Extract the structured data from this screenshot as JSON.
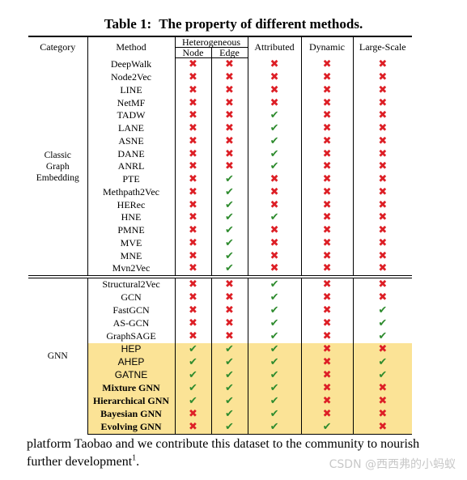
{
  "caption": {
    "label": "Table 1:",
    "text": "The property of different methods."
  },
  "header": {
    "category": "Category",
    "method": "Method",
    "heterogeneous": "Heterogeneous",
    "node": "Node",
    "edge": "Edge",
    "attributed": "Attributed",
    "dynamic": "Dynamic",
    "large_scale": "Large-Scale"
  },
  "categories": {
    "classic_line1": "Classic",
    "classic_line2": "Graph",
    "classic_line3": "Embedding",
    "gnn": "GNN"
  },
  "marks": {
    "check": "✔",
    "cross": "✖"
  },
  "colors": {
    "cross": "#dd1f26",
    "check": "#2e8b2e",
    "highlight": "#fbe396"
  },
  "classic_rows": [
    {
      "method": "DeepWalk",
      "node": "cross",
      "edge": "cross",
      "attributed": "cross",
      "dynamic": "cross",
      "large_scale": "cross"
    },
    {
      "method": "Node2Vec",
      "node": "cross",
      "edge": "cross",
      "attributed": "cross",
      "dynamic": "cross",
      "large_scale": "cross"
    },
    {
      "method": "LINE",
      "node": "cross",
      "edge": "cross",
      "attributed": "cross",
      "dynamic": "cross",
      "large_scale": "cross"
    },
    {
      "method": "NetMF",
      "node": "cross",
      "edge": "cross",
      "attributed": "cross",
      "dynamic": "cross",
      "large_scale": "cross"
    },
    {
      "method": "TADW",
      "node": "cross",
      "edge": "cross",
      "attributed": "check",
      "dynamic": "cross",
      "large_scale": "cross"
    },
    {
      "method": "LANE",
      "node": "cross",
      "edge": "cross",
      "attributed": "check",
      "dynamic": "cross",
      "large_scale": "cross"
    },
    {
      "method": "ASNE",
      "node": "cross",
      "edge": "cross",
      "attributed": "check",
      "dynamic": "cross",
      "large_scale": "cross"
    },
    {
      "method": "DANE",
      "node": "cross",
      "edge": "cross",
      "attributed": "check",
      "dynamic": "cross",
      "large_scale": "cross"
    },
    {
      "method": "ANRL",
      "node": "cross",
      "edge": "cross",
      "attributed": "check",
      "dynamic": "cross",
      "large_scale": "cross"
    },
    {
      "method": "PTE",
      "node": "cross",
      "edge": "check",
      "attributed": "cross",
      "dynamic": "cross",
      "large_scale": "cross"
    },
    {
      "method": "Methpath2Vec",
      "node": "cross",
      "edge": "check",
      "attributed": "cross",
      "dynamic": "cross",
      "large_scale": "cross"
    },
    {
      "method": "HERec",
      "node": "cross",
      "edge": "check",
      "attributed": "cross",
      "dynamic": "cross",
      "large_scale": "cross"
    },
    {
      "method": "HNE",
      "node": "cross",
      "edge": "check",
      "attributed": "check",
      "dynamic": "cross",
      "large_scale": "cross"
    },
    {
      "method": "PMNE",
      "node": "cross",
      "edge": "check",
      "attributed": "cross",
      "dynamic": "cross",
      "large_scale": "cross"
    },
    {
      "method": "MVE",
      "node": "cross",
      "edge": "check",
      "attributed": "cross",
      "dynamic": "cross",
      "large_scale": "cross"
    },
    {
      "method": "MNE",
      "node": "cross",
      "edge": "check",
      "attributed": "cross",
      "dynamic": "cross",
      "large_scale": "cross"
    },
    {
      "method": "Mvn2Vec",
      "node": "cross",
      "edge": "check",
      "attributed": "cross",
      "dynamic": "cross",
      "large_scale": "cross"
    }
  ],
  "gnn_rows": [
    {
      "method": "Structural2Vec",
      "node": "cross",
      "edge": "cross",
      "attributed": "check",
      "dynamic": "cross",
      "large_scale": "cross",
      "highlight": false,
      "style": "plain"
    },
    {
      "method": "GCN",
      "node": "cross",
      "edge": "cross",
      "attributed": "check",
      "dynamic": "cross",
      "large_scale": "cross",
      "highlight": false,
      "style": "plain"
    },
    {
      "method": "FastGCN",
      "node": "cross",
      "edge": "cross",
      "attributed": "check",
      "dynamic": "cross",
      "large_scale": "check",
      "highlight": false,
      "style": "plain"
    },
    {
      "method": "AS-GCN",
      "node": "cross",
      "edge": "cross",
      "attributed": "check",
      "dynamic": "cross",
      "large_scale": "check",
      "highlight": false,
      "style": "plain"
    },
    {
      "method": "GraphSAGE",
      "node": "cross",
      "edge": "cross",
      "attributed": "check",
      "dynamic": "cross",
      "large_scale": "check",
      "highlight": false,
      "style": "plain"
    },
    {
      "method": "HEP",
      "node": "check",
      "edge": "check",
      "attributed": "check",
      "dynamic": "cross",
      "large_scale": "cross",
      "highlight": true,
      "style": "sans"
    },
    {
      "method": "AHEP",
      "node": "check",
      "edge": "check",
      "attributed": "check",
      "dynamic": "cross",
      "large_scale": "check",
      "highlight": true,
      "style": "sans"
    },
    {
      "method": "GATNE",
      "node": "check",
      "edge": "check",
      "attributed": "check",
      "dynamic": "cross",
      "large_scale": "check",
      "highlight": true,
      "style": "sans"
    },
    {
      "method": "Mixture GNN",
      "node": "check",
      "edge": "check",
      "attributed": "check",
      "dynamic": "cross",
      "large_scale": "cross",
      "highlight": true,
      "style": "bold"
    },
    {
      "method": "Hierarchical GNN",
      "node": "check",
      "edge": "check",
      "attributed": "check",
      "dynamic": "cross",
      "large_scale": "cross",
      "highlight": true,
      "style": "bold"
    },
    {
      "method": "Bayesian GNN",
      "node": "cross",
      "edge": "check",
      "attributed": "check",
      "dynamic": "cross",
      "large_scale": "cross",
      "highlight": true,
      "style": "bold"
    },
    {
      "method": "Evolving GNN",
      "node": "cross",
      "edge": "check",
      "attributed": "check",
      "dynamic": "check",
      "large_scale": "cross",
      "highlight": true,
      "style": "bold"
    }
  ],
  "paragraph": {
    "text": "platform Taobao and we contribute this dataset to the community to nourish further development",
    "footnote": "1",
    "end": "."
  },
  "watermark": "CSDN @西西弗的小蚂蚁"
}
